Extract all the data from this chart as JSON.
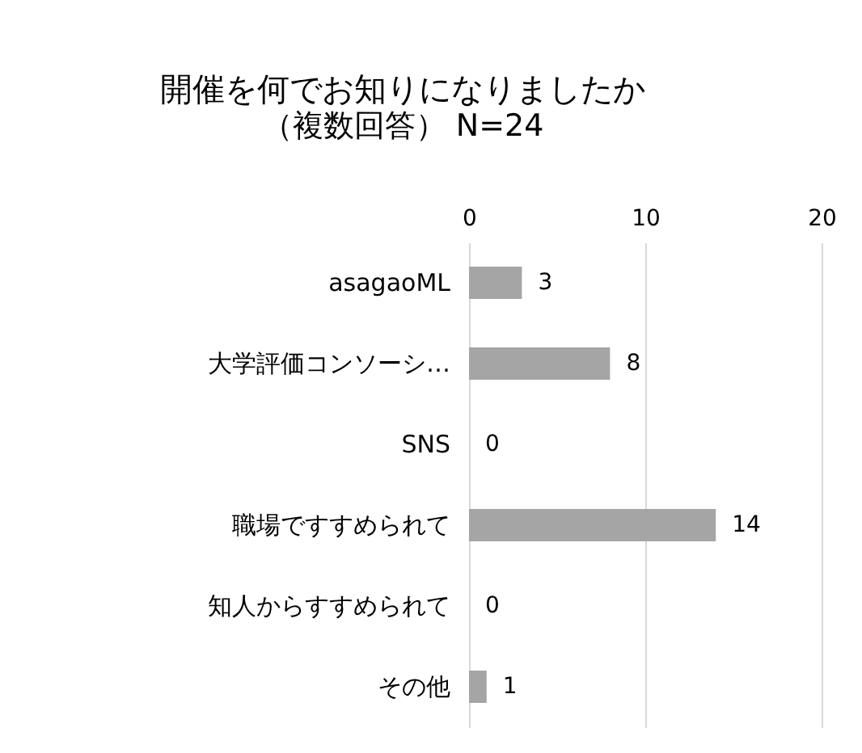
{
  "chart_data": {
    "type": "bar",
    "orientation": "horizontal",
    "title": "開催を何でお知りになりましたか",
    "subtitle": "（複数回答） N=24",
    "categories": [
      "asagaoML",
      "大学評価コンソーシ…",
      "SNS",
      "職場ですすめられて",
      "知人からすすめられて",
      "その他"
    ],
    "values": [
      3,
      8,
      0,
      14,
      0,
      1
    ],
    "color": "#a5a5a5",
    "xlim": [
      0,
      20
    ],
    "xticks": [
      0,
      10,
      20
    ],
    "grid": "x",
    "data_labels": true
  }
}
